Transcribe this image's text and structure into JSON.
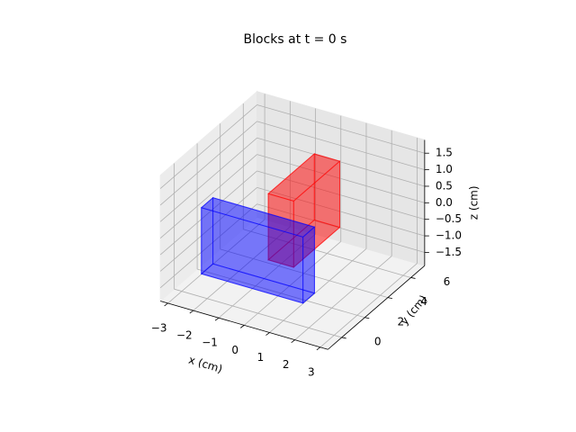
{
  "chart_data": {
    "type": "box3d",
    "title": "Blocks at t = 0 s",
    "xlabel": "x (cm)",
    "ylabel": "y (cm)",
    "zlabel": "z (cm)",
    "xlim": [
      -3.3,
      3.3
    ],
    "ylim": [
      -1.2,
      7.2
    ],
    "zlim": [
      -1.9,
      1.9
    ],
    "xticks": [
      {
        "value": -3,
        "label": "−3"
      },
      {
        "value": -2,
        "label": "−2"
      },
      {
        "value": -1,
        "label": "−1"
      },
      0,
      1,
      2,
      3
    ],
    "yticks": [
      0,
      2,
      4,
      6
    ],
    "zticks": [
      {
        "value": -1.5,
        "label": "−1.5"
      },
      {
        "value": -1.0,
        "label": "−1.0"
      },
      {
        "value": -0.5,
        "label": "−0.5"
      },
      {
        "value": 0,
        "label": "0.0"
      },
      {
        "value": 0.5,
        "label": "0.5"
      },
      {
        "value": 1.0,
        "label": "1.0"
      },
      {
        "value": 1.5,
        "label": "1.5"
      }
    ],
    "grid": true,
    "blocks": [
      {
        "color": "#0000ff",
        "x": [
          -2,
          2
        ],
        "y": [
          -0.5,
          0.5
        ],
        "z": [
          -1,
          1
        ]
      },
      {
        "color": "#ff0000",
        "x": [
          -0.5,
          0.5
        ],
        "y": [
          2,
          6
        ],
        "z": [
          -1,
          1
        ]
      }
    ]
  }
}
